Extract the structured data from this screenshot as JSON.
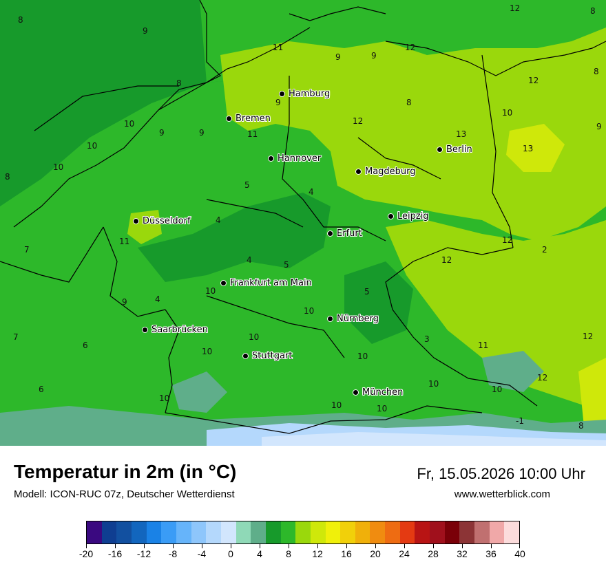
{
  "map": {
    "cities": [
      {
        "name": "Hamburg"
      },
      {
        "name": "Bremen"
      },
      {
        "name": "Hannover"
      },
      {
        "name": "Berlin"
      },
      {
        "name": "Magdeburg"
      },
      {
        "name": "Düsseldorf"
      },
      {
        "name": "Leipzig"
      },
      {
        "name": "Erfurt"
      },
      {
        "name": "Frankfurt am Main"
      },
      {
        "name": "Nürnberg"
      },
      {
        "name": "Saarbrücken"
      },
      {
        "name": "Stuttgart"
      },
      {
        "name": "München"
      }
    ],
    "values": [
      "12",
      "8",
      "8",
      "9",
      "11",
      "9",
      "9",
      "12",
      "8",
      "8",
      "12",
      "8",
      "10",
      "9",
      "10",
      "9",
      "9",
      "10",
      "11",
      "13",
      "13",
      "10",
      "8",
      "12",
      "5",
      "4",
      "11",
      "4",
      "4",
      "12",
      "12",
      "7",
      "9",
      "4",
      "5",
      "2",
      "10",
      "10",
      "5",
      "3",
      "11",
      "12",
      "7",
      "6",
      "10",
      "10",
      "10",
      "12",
      "6",
      "10",
      "10",
      "10",
      "10",
      "10",
      "-1",
      "8",
      "9"
    ]
  },
  "legend": {
    "colors": [
      "#3a0980",
      "#0f3e91",
      "#1250a0",
      "#1266be",
      "#1a82e6",
      "#3a9cf6",
      "#66b4fa",
      "#8ec6fb",
      "#b4d8fc",
      "#d2e6fd",
      "#8fd9b7",
      "#5fae8a",
      "#179a2b",
      "#2db82a",
      "#9ad80c",
      "#cfe80a",
      "#f0f00a",
      "#f1d00a",
      "#f0b00a",
      "#f08c10",
      "#ee6c12",
      "#e43a12",
      "#b81414",
      "#a0101c",
      "#7a0008",
      "#8c3436",
      "#c07070",
      "#f0a8a8",
      "#fcdcdc"
    ],
    "ticks": [
      "-20",
      "-16",
      "-12",
      "-8",
      "-4",
      "0",
      "4",
      "8",
      "12",
      "16",
      "20",
      "24",
      "28",
      "32",
      "36",
      "40"
    ]
  },
  "footer": {
    "title": "Temperatur in 2m (in °C)",
    "subtitle": "Modell: ICON-RUC 07z, Deutscher Wetterdienst",
    "datetime": "Fr, 15.05.2026 10:00 Uhr",
    "website": "www.wetterblick.com"
  }
}
